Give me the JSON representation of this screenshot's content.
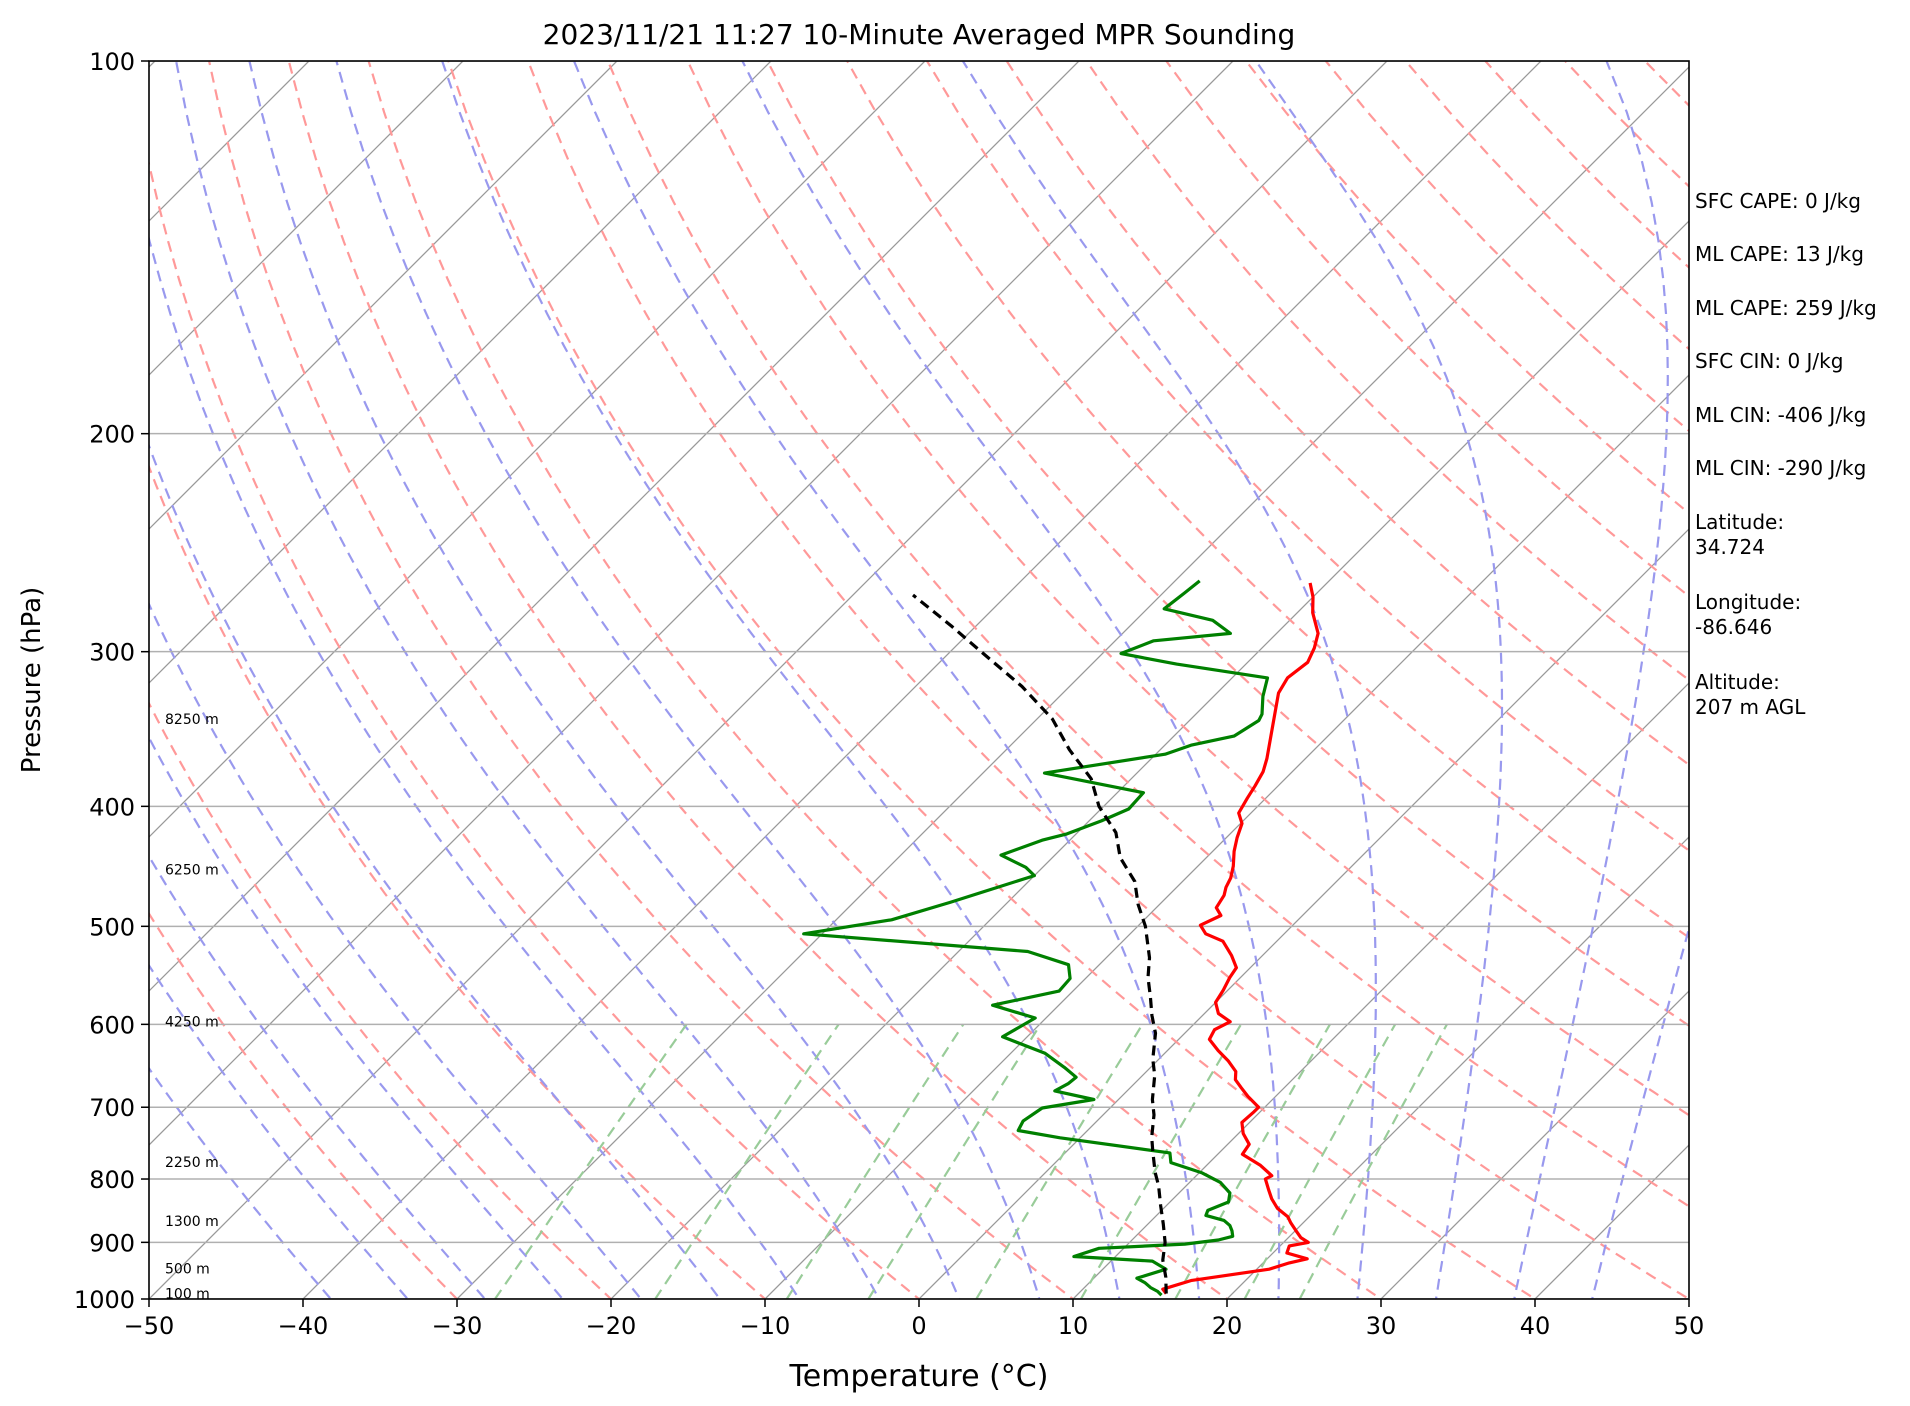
{
  "chart_data": {
    "type": "line",
    "title": "2023/11/21 11:27 10-Minute Averaged MPR Sounding",
    "xlabel": "Temperature (°C)",
    "ylabel": "Pressure (hPa)",
    "xlim": [
      -50,
      50
    ],
    "ylim": [
      1000,
      100
    ],
    "yscale": "log",
    "xticks": [
      "−50",
      "−40",
      "−30",
      "−20",
      "−10",
      "0",
      "10",
      "20",
      "30",
      "40",
      "50"
    ],
    "yticks": [
      "1000",
      "900",
      "800",
      "700",
      "600",
      "500",
      "400",
      "300",
      "200",
      "100"
    ],
    "grid": "horizontal isobars at labeled pressures",
    "background_lines": {
      "isotherms": {
        "color": "#999999",
        "style": "solid"
      },
      "dry_adiabats": {
        "color": "#ff9999",
        "style": "dashed"
      },
      "moist_adiabats": {
        "color": "#9999ee",
        "style": "dashed"
      },
      "mixing_ratio": {
        "color": "#99cc99",
        "style": "dashed"
      }
    },
    "height_labels": [
      {
        "text": "8250 m",
        "pressure": 340
      },
      {
        "text": "6250 m",
        "pressure": 450
      },
      {
        "text": "4250 m",
        "pressure": 597
      },
      {
        "text": "2250 m",
        "pressure": 775
      },
      {
        "text": "1300 m",
        "pressure": 865
      },
      {
        "text": "500 m",
        "pressure": 945
      },
      {
        "text": "100 m",
        "pressure": 990
      }
    ],
    "series": [
      {
        "color": "#ff0000",
        "points": [
          [
            15.7,
            990
          ],
          [
            15.2,
            982
          ],
          [
            16.5,
            966
          ],
          [
            20.8,
            946
          ],
          [
            21.7,
            935
          ],
          [
            22.6,
            928
          ],
          [
            20.9,
            918
          ],
          [
            20.6,
            906
          ],
          [
            21.6,
            900
          ],
          [
            20.8,
            892
          ],
          [
            20.0,
            880
          ],
          [
            19.2,
            868
          ],
          [
            18.6,
            858
          ],
          [
            17.4,
            845
          ],
          [
            16.4,
            830
          ],
          [
            15.6,
            816
          ],
          [
            14.7,
            800
          ],
          [
            14.9,
            795
          ],
          [
            13.5,
            780
          ],
          [
            11.6,
            764
          ],
          [
            11.4,
            750
          ],
          [
            10.3,
            735
          ],
          [
            9.5,
            720
          ],
          [
            9.6,
            706
          ],
          [
            9.6,
            700
          ],
          [
            8.2,
            686
          ],
          [
            7.2,
            675
          ],
          [
            6.3,
            665
          ],
          [
            5.8,
            655
          ],
          [
            4.6,
            642
          ],
          [
            3.3,
            630
          ],
          [
            2.0,
            617
          ],
          [
            1.7,
            606
          ],
          [
            2.2,
            597
          ],
          [
            0.9,
            588
          ],
          [
            0.0,
            576
          ],
          [
            -0.3,
            563
          ],
          [
            -0.7,
            550
          ],
          [
            -0.9,
            540
          ],
          [
            -2.0,
            528
          ],
          [
            -3.5,
            514
          ],
          [
            -5.1,
            507
          ],
          [
            -6.0,
            499
          ],
          [
            -5.3,
            490
          ],
          [
            -6.1,
            483
          ],
          [
            -6.4,
            472
          ],
          [
            -6.8,
            465
          ],
          [
            -7.1,
            457
          ],
          [
            -7.7,
            447
          ],
          [
            -8.6,
            435
          ],
          [
            -9.3,
            424
          ],
          [
            -9.9,
            413
          ],
          [
            -10.8,
            405
          ],
          [
            -11.2,
            394
          ],
          [
            -11.5,
            385
          ],
          [
            -11.9,
            375
          ],
          [
            -12.5,
            366
          ],
          [
            -16.0,
            324
          ],
          [
            -16.4,
            315
          ],
          [
            -16.1,
            306
          ],
          [
            -16.6,
            298
          ],
          [
            -17.3,
            290
          ],
          [
            -19.0,
            279
          ],
          [
            -20.0,
            271
          ],
          [
            -21.1,
            264
          ]
        ]
      },
      {
        "color": "#008000",
        "points": [
          [
            15.5,
            993
          ],
          [
            15.0,
            986
          ],
          [
            14.3,
            979
          ],
          [
            13.6,
            970
          ],
          [
            12.8,
            962
          ],
          [
            14.1,
            946
          ],
          [
            12.7,
            932
          ],
          [
            7.3,
            924
          ],
          [
            8.4,
            910
          ],
          [
            13.7,
            903
          ],
          [
            15.6,
            896
          ],
          [
            16.3,
            890
          ],
          [
            15.9,
            881
          ],
          [
            15.4,
            872
          ],
          [
            14.7,
            864
          ],
          [
            13.2,
            856
          ],
          [
            13.0,
            848
          ],
          [
            13.8,
            835
          ],
          [
            13.3,
            821
          ],
          [
            12.0,
            805
          ],
          [
            10.2,
            791
          ],
          [
            7.5,
            776
          ],
          [
            6.8,
            762
          ],
          [
            -1.3,
            741
          ],
          [
            -4.5,
            731
          ],
          [
            -4.8,
            718
          ],
          [
            -4.4,
            701
          ],
          [
            -1.6,
            690
          ],
          [
            -4.7,
            679
          ],
          [
            -4.3,
            670
          ],
          [
            -4.2,
            662
          ],
          [
            -5.6,
            650
          ],
          [
            -7.8,
            633
          ],
          [
            -11.6,
            614
          ],
          [
            -10.7,
            593
          ],
          [
            -14.3,
            579
          ],
          [
            -10.9,
            564
          ],
          [
            -11.0,
            551
          ],
          [
            -12.0,
            537
          ],
          [
            -15.5,
            524
          ],
          [
            -31.2,
            507
          ],
          [
            -26.4,
            494
          ],
          [
            -23.7,
            478
          ],
          [
            -21.8,
            466
          ],
          [
            -20.0,
            455
          ],
          [
            -21.1,
            448
          ],
          [
            -23.5,
            438
          ],
          [
            -21.8,
            426
          ],
          [
            -20.6,
            421
          ],
          [
            -19.2,
            411
          ],
          [
            -18.2,
            402
          ],
          [
            -18.3,
            390
          ],
          [
            -26.0,
            376
          ],
          [
            -19.4,
            363
          ],
          [
            -18.3,
            357
          ],
          [
            -16.1,
            351
          ],
          [
            -15.5,
            341
          ],
          [
            -15.7,
            337
          ],
          [
            -16.8,
            326
          ],
          [
            -17.7,
            315
          ],
          [
            -24.5,
            307
          ],
          [
            -28.8,
            301
          ],
          [
            -27.5,
            294
          ],
          [
            -23.0,
            290
          ],
          [
            -25.0,
            283
          ],
          [
            -28.9,
            277
          ],
          [
            -28.6,
            269
          ],
          [
            -28.4,
            263
          ]
        ]
      },
      {
        "color": "#000000",
        "style": "dashed",
        "points": [
          [
            15.7,
            990
          ],
          [
            14.6,
            960
          ],
          [
            13.3,
            930
          ],
          [
            12.3,
            900
          ],
          [
            11.0,
            870
          ],
          [
            9.6,
            840
          ],
          [
            8.2,
            810
          ],
          [
            7.1,
            790
          ],
          [
            5.6,
            760
          ],
          [
            4.6,
            740
          ],
          [
            3.3,
            710
          ],
          [
            2.2,
            690
          ],
          [
            0.8,
            660
          ],
          [
            -0.4,
            640
          ],
          [
            -1.9,
            610
          ],
          [
            -3.3,
            590
          ],
          [
            -4.6,
            570
          ],
          [
            -6.0,
            550
          ],
          [
            -7.2,
            530
          ],
          [
            -9.5,
            500
          ],
          [
            -11.4,
            480
          ],
          [
            -13.1,
            460
          ],
          [
            -15.6,
            440
          ],
          [
            -17.5,
            420
          ],
          [
            -20.3,
            400
          ],
          [
            -22.6,
            380
          ],
          [
            -25.9,
            360
          ],
          [
            -29.0,
            340
          ],
          [
            -33.1,
            320
          ],
          [
            -38.0,
            300
          ],
          [
            -41.6,
            286
          ],
          [
            -46.1,
            270
          ]
        ]
      }
    ]
  },
  "info_panel": {
    "sfc_cape": "SFC CAPE: 0 J/kg",
    "ml_cape_1": "ML CAPE: 13 J/kg",
    "ml_cape_2": "ML CAPE: 259 J/kg",
    "sfc_cin": "SFC CIN: 0 J/kg",
    "ml_cin_1": "ML CIN: -406 J/kg",
    "ml_cin_2": "ML CIN: -290 J/kg",
    "latitude_label": "Latitude:",
    "latitude_value": "34.724",
    "longitude_label": "Longitude:",
    "longitude_value": "-86.646",
    "altitude_label": "Altitude:",
    "altitude_value": "207 m AGL"
  }
}
